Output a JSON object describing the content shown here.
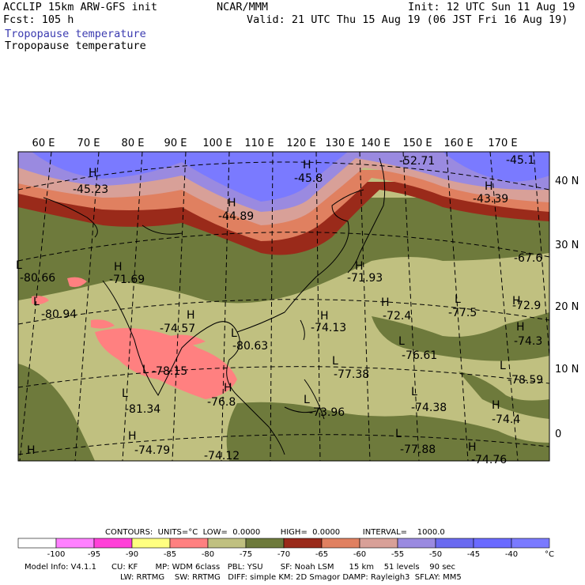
{
  "header": {
    "model_line": "ACCLIP 15km ARW-GFS init",
    "forecast": "Fcst: 105 h",
    "center": "NCAR/MMM",
    "init": "Init: 12 UTC Sun 11 Aug 19",
    "valid": "Valid: 21 UTC Thu 15 Aug 19 (06 JST Fri 16 Aug 19)",
    "field_title_1": "Tropopause temperature",
    "field_title_2": "Tropopause temperature"
  },
  "map": {
    "lon_labels": [
      "60 E",
      "70 E",
      "80 E",
      "90 E",
      "100 E",
      "110 E",
      "120 E",
      "130 E",
      "140 E",
      "150 E",
      "160 E",
      "170 E"
    ],
    "lat_labels": [
      "40 N",
      "30 N",
      "20 N",
      "10 N",
      "0"
    ],
    "extrema": [
      {
        "mark": "H",
        "value": "-45.23"
      },
      {
        "mark": "H",
        "value": "-45.8"
      },
      {
        "mark": "",
        "value": "-52.71"
      },
      {
        "mark": "",
        "value": "-45.1"
      },
      {
        "mark": "H",
        "value": "-43.39"
      },
      {
        "mark": "H",
        "value": "-44.89"
      },
      {
        "mark": "H",
        "value": "-67.6"
      },
      {
        "mark": "L",
        "value": "-80.66"
      },
      {
        "mark": "H",
        "value": "-71.69"
      },
      {
        "mark": "H",
        "value": "-71.93"
      },
      {
        "mark": "L",
        "value": "-80.94"
      },
      {
        "mark": "H",
        "value": "-74.57"
      },
      {
        "mark": "L",
        "value": "-80.63"
      },
      {
        "mark": "H",
        "value": "-74.13"
      },
      {
        "mark": "H",
        "value": "-72.4"
      },
      {
        "mark": "L",
        "value": "-77.5"
      },
      {
        "mark": "H",
        "value": "-72.9"
      },
      {
        "mark": "H",
        "value": "-74.3"
      },
      {
        "mark": "L",
        "value": "-76.61"
      },
      {
        "mark": "L",
        "value": "-78.15"
      },
      {
        "mark": "L",
        "value": "-77.38"
      },
      {
        "mark": "L",
        "value": "-78.59"
      },
      {
        "mark": "H",
        "value": "-76.8"
      },
      {
        "mark": "L",
        "value": "-81.34"
      },
      {
        "mark": "L",
        "value": "-73.96"
      },
      {
        "mark": "L",
        "value": "-74.38"
      },
      {
        "mark": "H",
        "value": "-74.4"
      },
      {
        "mark": "H",
        "value": "-74.79"
      },
      {
        "mark": "",
        "value": "-74.12"
      },
      {
        "mark": "L",
        "value": "-77.88"
      },
      {
        "mark": "H",
        "value": "-74.76"
      },
      {
        "mark": "H",
        "value": ""
      }
    ]
  },
  "contours_line": "CONTOURS:  UNITS=°C  LOW=  0.0000        HIGH=  0.0000         INTERVAL=    1000.0",
  "colorbar": {
    "colors": [
      "#ffffff",
      "#ff80ff",
      "#ff40d8",
      "#ffff80",
      "#ff8080",
      "#c0c080",
      "#6e7a3c",
      "#9a2a1a",
      "#e08060",
      "#d8a098",
      "#9a8ae0",
      "#6a6af0",
      "#6a6aff",
      "#7a7aff"
    ],
    "labels": [
      "-100",
      "-95",
      "-90",
      "-85",
      "-80",
      "-75",
      "-70",
      "-65",
      "-60",
      "-55",
      "-50",
      "-45",
      "-40"
    ],
    "unit": "°C"
  },
  "footer": {
    "line1": "Model Info: V4.1.1      CU: KF       MP: WDM 6class   PBL: YSU       SF: Noah LSM      15 km    51 levels    90 sec",
    "line2": "LW: RRTMG    SW: RRTMG   DIFF: simple KM: 2D Smagor DAMP: Rayleigh3  SFLAY: MM5"
  },
  "colors": {
    "purple_high": "#7a7aff",
    "lavender": "#9a8ae0",
    "pink_light": "#d8a098",
    "salmon": "#e08060",
    "dark_red": "#9a2a1a",
    "olive_dark": "#6e7a3c",
    "olive_light": "#c0c080",
    "pink_low": "#ff8080",
    "header_blue": "#3a3ab0"
  }
}
